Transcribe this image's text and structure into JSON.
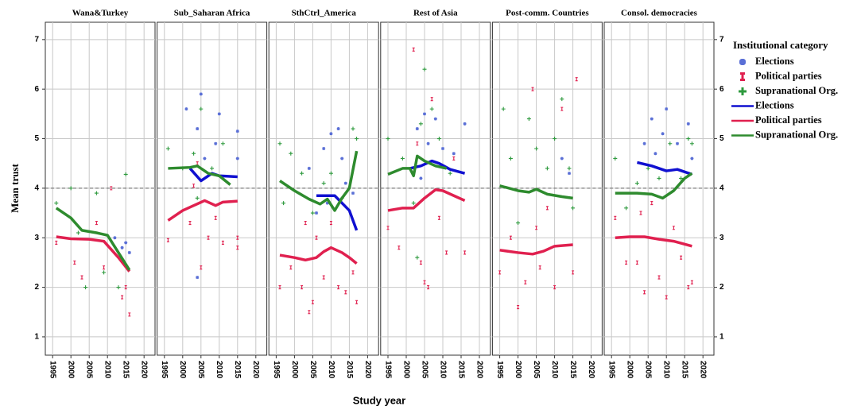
{
  "axes": {
    "xlabel": "Study year",
    "ylabel": "Mean trust"
  },
  "legend": {
    "title": "Institutional category"
  },
  "chart_data": [
    {
      "type": "line",
      "title": "Wana&Turkey",
      "xlim": [
        1993,
        2023
      ],
      "ylim": [
        0.63,
        7.35
      ],
      "xticks": [
        1995,
        2000,
        2005,
        2010,
        2015,
        2020
      ],
      "yticks": [
        1,
        2,
        3,
        4,
        5,
        6,
        7
      ],
      "grid": true,
      "refline": 4,
      "series": [
        {
          "name": "Elections",
          "type": "scatter",
          "marker": "star",
          "color": "#5a6fd6",
          "x": [
            2012,
            2014,
            2015,
            2016
          ],
          "values": [
            3.0,
            2.8,
            2.9,
            2.7
          ]
        },
        {
          "name": "Political parties",
          "type": "scatter",
          "marker": "bar",
          "color": "#e0204f",
          "x": [
            1996,
            2001,
            2003,
            2007,
            2009,
            2011,
            2014,
            2016,
            2015
          ],
          "values": [
            2.9,
            2.5,
            2.2,
            3.3,
            2.4,
            4.0,
            1.8,
            1.45,
            2.0
          ]
        },
        {
          "name": "Supranational Org.",
          "type": "scatter",
          "marker": "plus",
          "color": "#2e9a3e",
          "x": [
            1996,
            2000,
            2002,
            2004,
            2007,
            2009,
            2013,
            2015
          ],
          "values": [
            3.7,
            4.0,
            3.1,
            2.0,
            3.9,
            2.3,
            2.0,
            4.28
          ]
        },
        {
          "name": "Political parties",
          "type": "line",
          "color": "#e0204f",
          "x": [
            1996,
            2000,
            2005,
            2009,
            2013,
            2016
          ],
          "values": [
            3.02,
            2.98,
            2.97,
            2.93,
            2.6,
            2.32
          ]
        },
        {
          "name": "Supranational Org.",
          "type": "line",
          "color": "#2e8b2e",
          "x": [
            1996,
            2000,
            2003,
            2007,
            2010,
            2013,
            2016
          ],
          "values": [
            3.6,
            3.4,
            3.15,
            3.1,
            3.05,
            2.7,
            2.35
          ]
        }
      ]
    },
    {
      "type": "line",
      "title": "Sub_Saharan Africa",
      "xlim": [
        1993,
        2023
      ],
      "ylim": [
        0.63,
        7.35
      ],
      "xticks": [
        1995,
        2000,
        2005,
        2010,
        2015,
        2020
      ],
      "yticks": [
        1,
        2,
        3,
        4,
        5,
        6,
        7
      ],
      "grid": true,
      "refline": 4,
      "series": [
        {
          "name": "Elections",
          "type": "scatter",
          "marker": "star",
          "color": "#5a6fd6",
          "x": [
            2001,
            2004,
            2005,
            2006,
            2009,
            2010,
            2015,
            2015,
            2004
          ],
          "values": [
            5.6,
            5.2,
            5.9,
            4.6,
            4.9,
            5.5,
            5.15,
            4.6,
            2.2
          ]
        },
        {
          "name": "Political parties",
          "type": "scatter",
          "marker": "bar",
          "color": "#e0204f",
          "x": [
            1996,
            2002,
            2004,
            2005,
            2007,
            2009,
            2011,
            2015,
            2015,
            2003
          ],
          "values": [
            2.95,
            3.3,
            4.5,
            2.4,
            3.0,
            3.4,
            2.9,
            3.0,
            2.8,
            4.05
          ]
        },
        {
          "name": "Supranational Org.",
          "type": "scatter",
          "marker": "plus",
          "color": "#2e9a3e",
          "x": [
            1996,
            2000,
            2003,
            2005,
            2008,
            2011,
            2004
          ],
          "values": [
            4.8,
            4.4,
            4.7,
            5.6,
            4.4,
            4.9,
            3.8
          ]
        },
        {
          "name": "Elections",
          "type": "line",
          "color": "#1010d0",
          "x": [
            2002,
            2005,
            2008,
            2010,
            2015
          ],
          "values": [
            4.4,
            4.15,
            4.3,
            4.25,
            4.23
          ]
        },
        {
          "name": "Political parties",
          "type": "line",
          "color": "#e0204f",
          "x": [
            1996,
            2000,
            2003,
            2006,
            2009,
            2011,
            2015
          ],
          "values": [
            3.35,
            3.55,
            3.65,
            3.75,
            3.65,
            3.72,
            3.74
          ]
        },
        {
          "name": "Supranational Org.",
          "type": "line",
          "color": "#2e8b2e",
          "x": [
            1996,
            2002,
            2004,
            2007,
            2010,
            2013
          ],
          "values": [
            4.4,
            4.42,
            4.45,
            4.3,
            4.25,
            4.07
          ]
        }
      ]
    },
    {
      "type": "line",
      "title": "SthCtrl_America",
      "xlim": [
        1993,
        2023
      ],
      "ylim": [
        0.63,
        7.35
      ],
      "xticks": [
        1995,
        2000,
        2005,
        2010,
        2015,
        2020
      ],
      "yticks": [
        1,
        2,
        3,
        4,
        5,
        6,
        7
      ],
      "grid": true,
      "refline": 4,
      "series": [
        {
          "name": "Elections",
          "type": "scatter",
          "marker": "star",
          "color": "#5a6fd6",
          "x": [
            2004,
            2006,
            2008,
            2010,
            2012,
            2014,
            2016,
            2013,
            2009
          ],
          "values": [
            4.4,
            3.5,
            4.8,
            5.1,
            5.2,
            4.1,
            3.9,
            4.6,
            3.7
          ]
        },
        {
          "name": "Political parties",
          "type": "scatter",
          "marker": "bar",
          "color": "#e0204f",
          "x": [
            1996,
            1999,
            2002,
            2004,
            2006,
            2008,
            2010,
            2012,
            2014,
            2016,
            2017,
            2005,
            2003
          ],
          "values": [
            2.0,
            2.4,
            2.0,
            1.5,
            3.0,
            2.2,
            3.3,
            2.0,
            1.9,
            2.3,
            1.7,
            1.7,
            3.3
          ]
        },
        {
          "name": "Supranational Org.",
          "type": "scatter",
          "marker": "plus",
          "color": "#2e9a3e",
          "x": [
            1996,
            1999,
            2002,
            2005,
            2008,
            2010,
            2013,
            2016,
            2017,
            1997
          ],
          "values": [
            4.9,
            4.7,
            4.3,
            3.5,
            4.1,
            4.3,
            3.8,
            5.2,
            5.0,
            3.7
          ]
        },
        {
          "name": "Elections",
          "type": "line",
          "color": "#1010d0",
          "x": [
            2006,
            2009,
            2011,
            2013,
            2015,
            2017
          ],
          "values": [
            3.85,
            3.85,
            3.85,
            3.7,
            3.55,
            3.15
          ]
        },
        {
          "name": "Political parties",
          "type": "line",
          "color": "#e0204f",
          "x": [
            1996,
            2000,
            2003,
            2006,
            2008,
            2010,
            2013,
            2015,
            2017
          ],
          "values": [
            2.65,
            2.6,
            2.55,
            2.6,
            2.72,
            2.8,
            2.7,
            2.6,
            2.48
          ]
        },
        {
          "name": "Supranational Org.",
          "type": "line",
          "color": "#2e8b2e",
          "x": [
            1996,
            2000,
            2004,
            2007,
            2009,
            2011,
            2013,
            2015,
            2017
          ],
          "values": [
            4.15,
            3.95,
            3.78,
            3.68,
            3.78,
            3.55,
            3.8,
            4.0,
            4.75
          ]
        }
      ]
    },
    {
      "type": "line",
      "title": "Rest of Asia",
      "xlim": [
        1993,
        2023
      ],
      "ylim": [
        0.63,
        7.35
      ],
      "xticks": [
        1995,
        2000,
        2005,
        2010,
        2015,
        2020
      ],
      "yticks": [
        1,
        2,
        3,
        4,
        5,
        6,
        7
      ],
      "grid": true,
      "refline": 4,
      "series": [
        {
          "name": "Elections",
          "type": "scatter",
          "marker": "star",
          "color": "#5a6fd6",
          "x": [
            2003,
            2005,
            2006,
            2008,
            2010,
            2013,
            2016,
            2004
          ],
          "values": [
            5.2,
            5.5,
            4.9,
            5.4,
            4.8,
            4.7,
            5.3,
            4.2
          ]
        },
        {
          "name": "Political parties",
          "type": "scatter",
          "marker": "bar",
          "color": "#e0204f",
          "x": [
            1995,
            1998,
            2002,
            2004,
            2005,
            2007,
            2009,
            2011,
            2013,
            2016,
            2003,
            2006
          ],
          "values": [
            3.2,
            2.8,
            6.8,
            2.5,
            2.1,
            5.8,
            3.4,
            2.7,
            4.6,
            2.7,
            4.9,
            2.0
          ]
        },
        {
          "name": "Supranational Org.",
          "type": "scatter",
          "marker": "plus",
          "color": "#2e9a3e",
          "x": [
            1995,
            1999,
            2002,
            2004,
            2005,
            2007,
            2009,
            2012,
            2003
          ],
          "values": [
            5.0,
            4.6,
            3.7,
            5.3,
            6.4,
            5.6,
            5.0,
            4.3,
            2.6
          ]
        },
        {
          "name": "Elections",
          "type": "line",
          "color": "#1010d0",
          "x": [
            2001,
            2004,
            2007,
            2009,
            2012,
            2016
          ],
          "values": [
            4.4,
            4.45,
            4.55,
            4.5,
            4.38,
            4.3
          ]
        },
        {
          "name": "Political parties",
          "type": "line",
          "color": "#e0204f",
          "x": [
            1995,
            1999,
            2002,
            2005,
            2008,
            2010,
            2013,
            2016
          ],
          "values": [
            3.55,
            3.6,
            3.6,
            3.8,
            3.97,
            3.95,
            3.85,
            3.75
          ]
        },
        {
          "name": "Supranational Org.",
          "type": "line",
          "color": "#2e8b2e",
          "x": [
            1995,
            1999,
            2001,
            2002,
            2003,
            2005,
            2008,
            2011
          ],
          "values": [
            4.28,
            4.4,
            4.4,
            4.25,
            4.65,
            4.55,
            4.45,
            4.4
          ]
        }
      ]
    },
    {
      "type": "line",
      "title": "Post-comm. Countries",
      "xlim": [
        1993,
        2023
      ],
      "ylim": [
        0.63,
        7.35
      ],
      "xticks": [
        1995,
        2000,
        2005,
        2010,
        2015,
        2020
      ],
      "yticks": [
        1,
        2,
        3,
        4,
        5,
        6,
        7
      ],
      "grid": true,
      "refline": 4,
      "series": [
        {
          "name": "Elections",
          "type": "scatter",
          "marker": "star",
          "color": "#5a6fd6",
          "x": [
            2012,
            2014
          ],
          "values": [
            4.6,
            4.3
          ]
        },
        {
          "name": "Political parties",
          "type": "scatter",
          "marker": "bar",
          "color": "#e0204f",
          "x": [
            1995,
            1998,
            2000,
            2002,
            2004,
            2006,
            2008,
            2010,
            2012,
            2015,
            2016,
            2005
          ],
          "values": [
            2.3,
            3.0,
            1.6,
            2.1,
            6.0,
            2.4,
            3.6,
            2.0,
            5.6,
            2.3,
            6.2,
            3.2
          ]
        },
        {
          "name": "Supranational Org.",
          "type": "scatter",
          "marker": "plus",
          "color": "#2e9a3e",
          "x": [
            1996,
            1998,
            2000,
            2003,
            2005,
            2008,
            2010,
            2012,
            2014,
            2015
          ],
          "values": [
            5.6,
            4.6,
            3.3,
            5.4,
            4.8,
            4.4,
            5.0,
            5.8,
            4.4,
            3.6
          ]
        },
        {
          "name": "Political parties",
          "type": "line",
          "color": "#e0204f",
          "x": [
            1995,
            2000,
            2004,
            2007,
            2010,
            2015
          ],
          "values": [
            2.75,
            2.7,
            2.67,
            2.73,
            2.83,
            2.86
          ]
        },
        {
          "name": "Supranational Org.",
          "type": "line",
          "color": "#2e8b2e",
          "x": [
            1995,
            2000,
            2003,
            2005,
            2008,
            2012,
            2015
          ],
          "values": [
            4.05,
            3.95,
            3.92,
            3.98,
            3.88,
            3.83,
            3.8
          ]
        }
      ]
    },
    {
      "type": "line",
      "title": "Consol. democracies",
      "xlim": [
        1993,
        2023
      ],
      "ylim": [
        0.63,
        7.35
      ],
      "xticks": [
        1995,
        2000,
        2005,
        2010,
        2015,
        2020
      ],
      "yticks": [
        1,
        2,
        3,
        4,
        5,
        6,
        7
      ],
      "grid": true,
      "refline": 4,
      "series": [
        {
          "name": "Elections",
          "type": "scatter",
          "marker": "star",
          "color": "#5a6fd6",
          "x": [
            2004,
            2006,
            2009,
            2010,
            2013,
            2016,
            2017,
            2007
          ],
          "values": [
            4.9,
            5.4,
            5.1,
            5.6,
            4.9,
            5.3,
            4.6,
            4.7
          ]
        },
        {
          "name": "Political parties",
          "type": "scatter",
          "marker": "bar",
          "color": "#e0204f",
          "x": [
            1996,
            1999,
            2002,
            2004,
            2006,
            2008,
            2010,
            2012,
            2014,
            2016,
            2017,
            2003
          ],
          "values": [
            3.4,
            2.5,
            2.5,
            1.9,
            3.7,
            2.2,
            1.8,
            3.2,
            2.6,
            2.0,
            2.1,
            3.5
          ]
        },
        {
          "name": "Supranational Org.",
          "type": "scatter",
          "marker": "plus",
          "color": "#2e9a3e",
          "x": [
            1996,
            1999,
            2002,
            2005,
            2008,
            2011,
            2014,
            2016,
            2017
          ],
          "values": [
            4.6,
            3.6,
            4.1,
            4.4,
            4.2,
            4.9,
            4.2,
            5.0,
            4.9
          ]
        },
        {
          "name": "Elections",
          "type": "line",
          "color": "#1010d0",
          "x": [
            2002,
            2006,
            2010,
            2013,
            2017
          ],
          "values": [
            4.52,
            4.45,
            4.35,
            4.38,
            4.28
          ]
        },
        {
          "name": "Political parties",
          "type": "line",
          "color": "#e0204f",
          "x": [
            1996,
            2000,
            2004,
            2008,
            2012,
            2017
          ],
          "values": [
            3.0,
            3.02,
            3.02,
            2.97,
            2.93,
            2.83
          ]
        },
        {
          "name": "Supranational Org.",
          "type": "line",
          "color": "#2e8b2e",
          "x": [
            1996,
            2002,
            2006,
            2009,
            2012,
            2015,
            2017
          ],
          "values": [
            3.9,
            3.9,
            3.88,
            3.8,
            3.95,
            4.2,
            4.3
          ]
        }
      ]
    }
  ]
}
